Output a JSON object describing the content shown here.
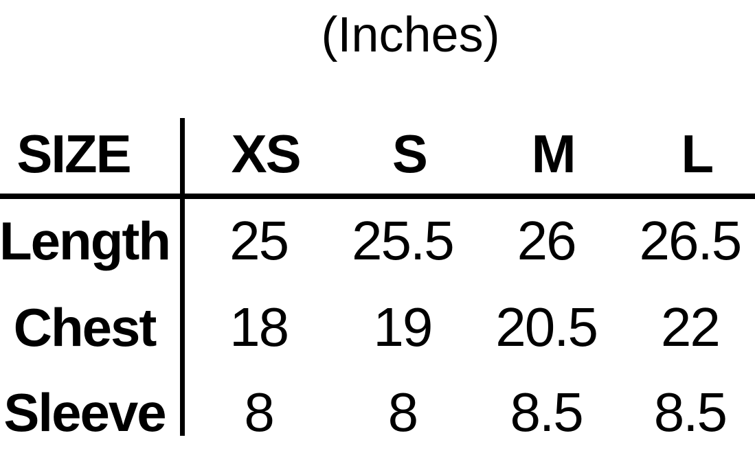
{
  "title": "(Inches)",
  "table": {
    "corner_label": "SIZE",
    "size_headers": [
      "XS",
      "S",
      "M",
      "L"
    ],
    "rows": [
      {
        "label": "Length",
        "values": [
          "25",
          "25.5",
          "26",
          "26.5"
        ]
      },
      {
        "label": "Chest",
        "values": [
          "18",
          "19",
          "20.5",
          "22"
        ]
      },
      {
        "label": "Sleeve",
        "values": [
          "8",
          "8",
          "8.5",
          "8.5"
        ]
      }
    ]
  },
  "chart_data": {
    "type": "table",
    "title": "(Inches)",
    "columns": [
      "SIZE",
      "XS",
      "S",
      "M",
      "L"
    ],
    "rows": [
      [
        "Length",
        25,
        25.5,
        26,
        26.5
      ],
      [
        "Chest",
        18,
        19,
        20.5,
        22
      ],
      [
        "Sleeve",
        8,
        8,
        8.5,
        8.5
      ]
    ],
    "units": "inches"
  },
  "colors": {
    "text": "#000000",
    "background": "#ffffff",
    "divider": "#000000"
  }
}
